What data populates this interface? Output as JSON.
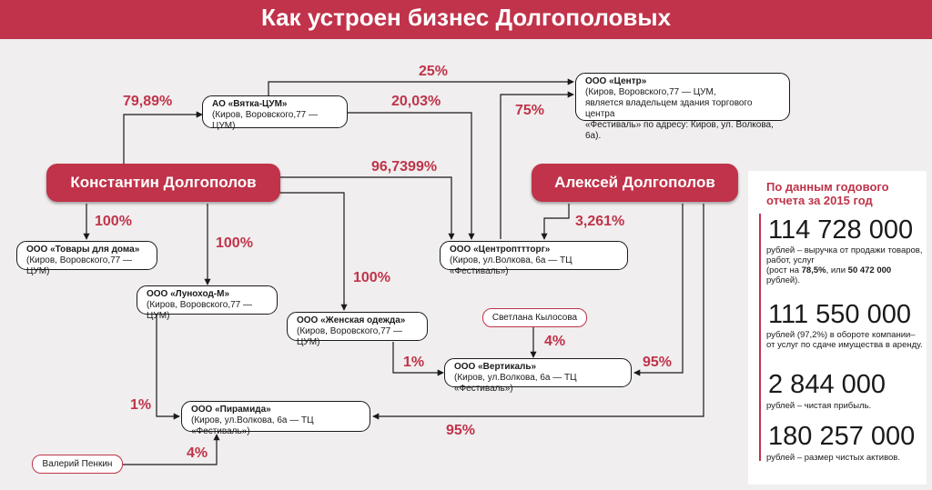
{
  "title": "Как устроен бизнес Долгополовых",
  "people": {
    "konstantin": "Константин Долгополов",
    "aleksey": "Алексей Долгополов",
    "svetlana": "Светлана Кылосова",
    "valeriy": "Валерий Пенкин"
  },
  "companies": {
    "vyatka": {
      "name": "АО «Вятка-ЦУМ»",
      "addr": "(Киров, Воровского,77 — ЦУМ)"
    },
    "center": {
      "name": "ООО «Центр»",
      "addr1": "(Киров, Воровского,77 — ЦУМ,",
      "addr2": "является владельцем здания торгового центра",
      "addr3": "«Фестиваль» по адресу: Киров, ул. Волкова, 6а)."
    },
    "tovary": {
      "name": "ООО «Товары для дома»",
      "addr": "(Киров, Воровского,77 — ЦУМ)"
    },
    "lunokhod": {
      "name": "ООО «Луноход-М»",
      "addr": "(Киров, Воровского,77 — ЦУМ)"
    },
    "tsentroptorg": {
      "name": "ООО «Центропттторг»",
      "addr": "(Киров, ул.Волкова, 6а — ТЦ «Фестиваль»)"
    },
    "zhenskaya": {
      "name": "ООО «Женская одежда»",
      "addr": "(Киров, Воровского,77 — ЦУМ)"
    },
    "vertikal": {
      "name": "ООО «Вертикаль»",
      "addr": "(Киров, ул.Волкова, 6а — ТЦ «Фестиваль»)"
    },
    "piramida": {
      "name": "ООО «Пирамида»",
      "addr": "(Киров, ул.Волкова, 6а — ТЦ «Фестиваль»)"
    }
  },
  "percents": {
    "k_vyatka": "79,89%",
    "vyatka_center": "25%",
    "vyatka_tsentroptorg": "20,03%",
    "tsentroptorg_center": "75%",
    "k_tsentroptorg": "96,7399%",
    "k_tovary": "100%",
    "k_lunokhod": "100%",
    "k_zhenskaya": "100%",
    "a_tsentroptorg": "3,261%",
    "svetlana_vertikal": "4%",
    "zhenskaya_vertikal": "1%",
    "a_vertikal": "95%",
    "lunokhod_piramida": "1%",
    "a_piramida": "95%",
    "valeriy_piramida": "4%"
  },
  "stats": {
    "heading": "По данным годового отчета за 2015 год",
    "items": [
      {
        "number": "114 728 000",
        "text_a": "рублей – выручка от продажи товаров, работ, услуг",
        "text_b": "(рост на ",
        "hl1": "78,5%",
        "text_c": ", или ",
        "hl2": "50 472 000",
        "text_d": " рублей)."
      },
      {
        "number": "111 550 000",
        "text": "рублей (97,2%) в обороте компании– от услуг по сдаче имущества в аренду."
      },
      {
        "number": "2 844 000",
        "text": "рублей – чистая прибыль."
      },
      {
        "number": "180 257 000",
        "text": "рублей – размер чистых активов."
      }
    ]
  },
  "colors": {
    "accent": "#c0334a",
    "background": "#f0eeee",
    "line": "#1a1a1a"
  }
}
